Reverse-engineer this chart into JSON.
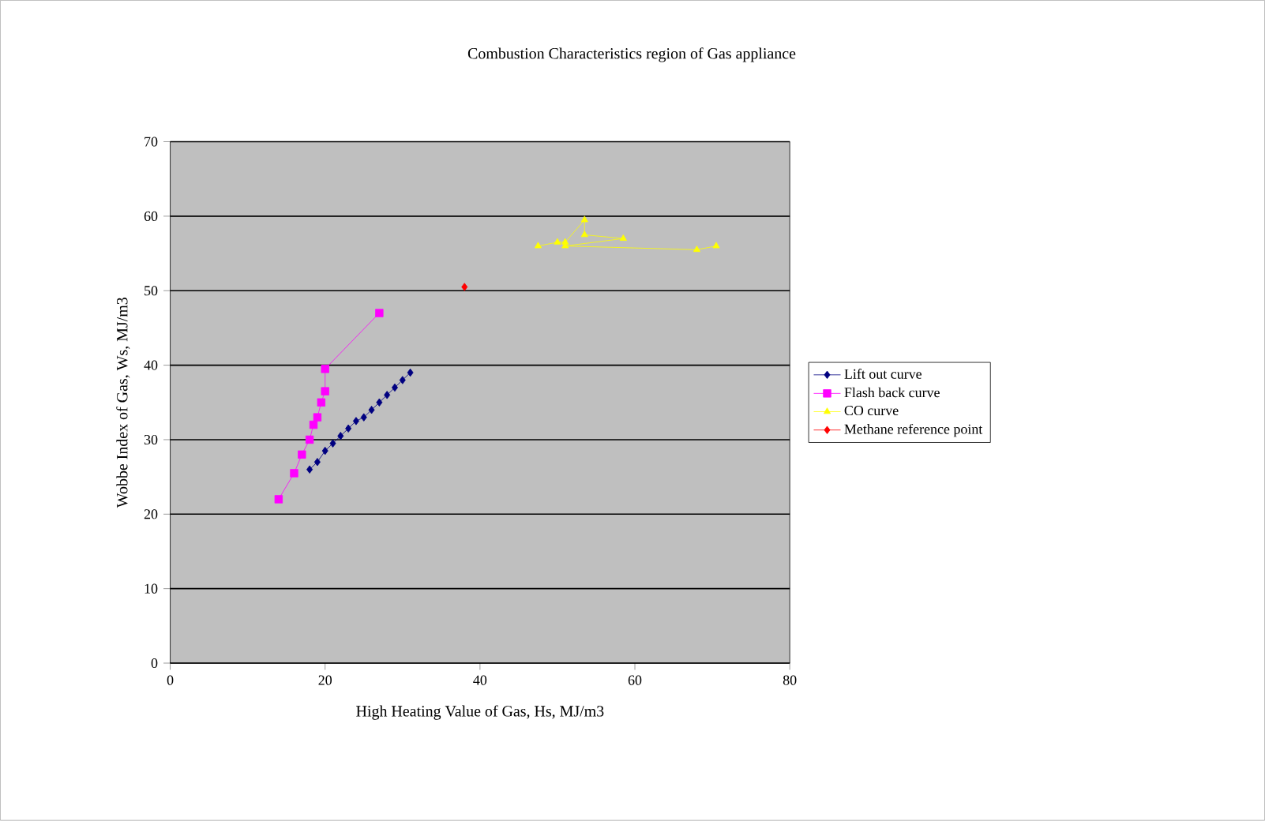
{
  "chart_data": {
    "type": "line",
    "title": "Combustion Characteristics region of Gas appliance",
    "xlabel": "High Heating Value of Gas, Hs, MJ/m3",
    "ylabel": "Wobbe Index of Gas, Ws, MJ/m3",
    "xlim": [
      0,
      80
    ],
    "ylim": [
      0,
      70
    ],
    "xticks": [
      0,
      20,
      40,
      60,
      80
    ],
    "yticks": [
      0,
      10,
      20,
      30,
      40,
      50,
      60,
      70
    ],
    "grid": "y",
    "legend": "right",
    "series": [
      {
        "name": "Lift out curve",
        "color": "#000080",
        "marker": "diamond",
        "x": [
          18,
          19,
          20,
          21,
          22,
          23,
          24,
          25,
          26,
          27,
          28,
          29,
          30,
          31
        ],
        "values": [
          26,
          27,
          28.5,
          29.5,
          30.5,
          31.5,
          32.5,
          33,
          34,
          35,
          36,
          37,
          38,
          39
        ]
      },
      {
        "name": "Flash back curve",
        "color": "#ff00ff",
        "marker": "square",
        "x": [
          14,
          16,
          17,
          18,
          18.5,
          19,
          19.5,
          20,
          20,
          27
        ],
        "values": [
          22,
          25.5,
          28,
          30,
          32,
          33,
          35,
          36.5,
          39.5,
          47
        ]
      },
      {
        "name": "CO curve",
        "color": "#ffff00",
        "marker": "triangle",
        "x": [
          47.5,
          50,
          51,
          53.5,
          53.5,
          58.5,
          51,
          68,
          70.5
        ],
        "values": [
          56,
          56.5,
          56.5,
          59.5,
          57.5,
          57,
          56,
          55.5,
          56
        ]
      },
      {
        "name": "Methane reference point",
        "color": "#ff0000",
        "marker": "diamond",
        "x": [
          38
        ],
        "values": [
          50.5
        ]
      }
    ]
  }
}
